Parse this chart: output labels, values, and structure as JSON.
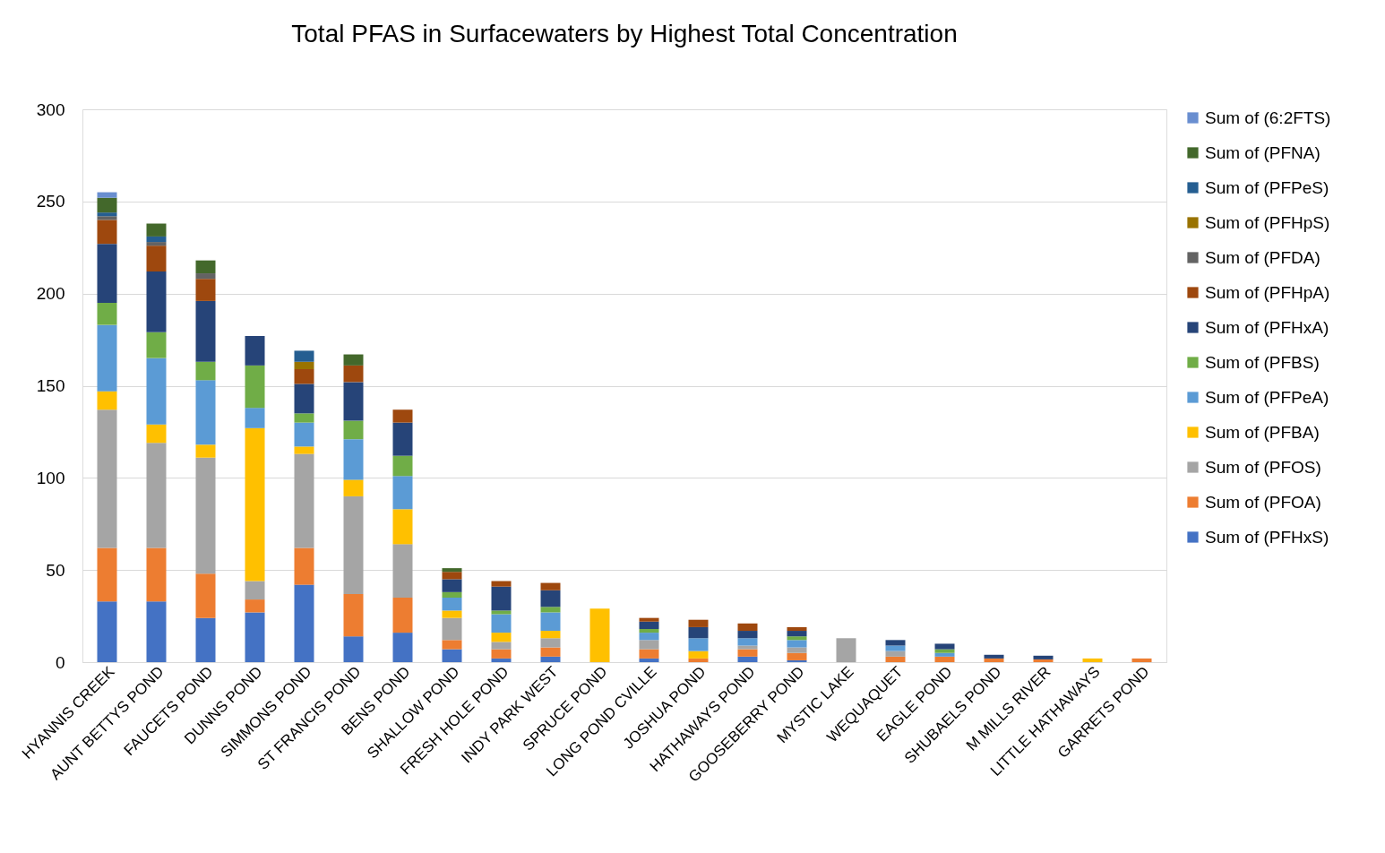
{
  "chart_data": {
    "type": "bar",
    "title": "Total PFAS in Surfacewaters by Highest Total Concentration",
    "stacked": true,
    "grid": "y",
    "legend": "right",
    "categories": [
      "HYANNIS CREEK",
      "AUNT BETTYS POND",
      "FAUCETS POND",
      "DUNNS POND",
      "SIMMONS POND",
      "ST FRANCIS POND",
      "BENS POND",
      "SHALLOW POND",
      "FRESH HOLE POND",
      "INDY PARK WEST",
      "SPRUCE POND",
      "LONG POND CVILLE",
      "JOSHUA POND",
      "HATHAWAYS POND",
      "GOOSEBERRY POND",
      "MYSTIC LAKE",
      "WEQUAQUET",
      "EAGLE POND",
      "SHUBAELS POND",
      "M MILLS RIVER",
      "LITTLE HATHAWAYS",
      "GARRETS POND"
    ],
    "ylim": [
      0,
      300
    ],
    "yticks": [
      0,
      50,
      100,
      150,
      200,
      250,
      300
    ],
    "series": [
      {
        "name": "Sum of (PFHxS)",
        "color": "#4472c4",
        "values": [
          33,
          33,
          24,
          27,
          42,
          14,
          16,
          7,
          2,
          3,
          null,
          2,
          null,
          3,
          1,
          null,
          null,
          null,
          null,
          null,
          null,
          null
        ]
      },
      {
        "name": "Sum of (PFOA)",
        "color": "#ed7d31",
        "values": [
          29,
          29,
          24,
          7,
          20,
          23,
          19,
          5,
          5,
          5,
          null,
          5,
          2,
          4,
          4,
          null,
          3,
          3,
          2,
          1.5,
          null,
          2
        ]
      },
      {
        "name": "Sum of (PFOS)",
        "color": "#a5a5a5",
        "values": [
          75,
          57,
          63,
          10,
          51,
          53,
          29,
          12,
          4,
          5,
          null,
          5,
          null,
          2,
          3,
          13,
          3,
          null,
          null,
          null,
          null,
          null
        ]
      },
      {
        "name": "Sum of (PFBA)",
        "color": "#ffc000",
        "values": [
          10,
          10,
          7,
          83,
          4,
          9,
          19,
          4,
          5,
          4,
          29,
          null,
          4,
          null,
          null,
          null,
          null,
          null,
          null,
          null,
          2,
          null
        ]
      },
      {
        "name": "Sum of (PFPeA)",
        "color": "#5b9bd5",
        "values": [
          36,
          36,
          35,
          11,
          13,
          22,
          18,
          7,
          10,
          10,
          null,
          4,
          7,
          4,
          4,
          null,
          3,
          2,
          null,
          null,
          null,
          null
        ]
      },
      {
        "name": "Sum of (PFBS)",
        "color": "#70ad47",
        "values": [
          12,
          14,
          10,
          23,
          5,
          10,
          11,
          3,
          2,
          3,
          null,
          2,
          null,
          null,
          2,
          null,
          null,
          2,
          null,
          null,
          null,
          null
        ]
      },
      {
        "name": "Sum of (PFHxA)",
        "color": "#264478",
        "values": [
          32,
          33,
          33,
          16,
          16,
          21,
          18,
          7,
          13,
          9,
          null,
          4,
          6,
          4,
          3,
          null,
          3,
          3,
          2,
          2,
          null,
          null
        ]
      },
      {
        "name": "Sum of (PFHpA)",
        "color": "#9e480e",
        "values": [
          13,
          14,
          12,
          null,
          8,
          9,
          7,
          4,
          3,
          4,
          null,
          2,
          4,
          4,
          2,
          null,
          null,
          null,
          null,
          null,
          null,
          null
        ]
      },
      {
        "name": "Sum of (PFDA)",
        "color": "#636363",
        "values": [
          2,
          2,
          3,
          null,
          null,
          null,
          null,
          null,
          null,
          null,
          null,
          null,
          null,
          null,
          null,
          null,
          null,
          null,
          null,
          null,
          null,
          null
        ]
      },
      {
        "name": "Sum of (PFHpS)",
        "color": "#997300",
        "values": [
          null,
          null,
          null,
          null,
          4,
          null,
          null,
          null,
          null,
          null,
          null,
          null,
          null,
          null,
          null,
          null,
          null,
          null,
          null,
          null,
          null,
          null
        ]
      },
      {
        "name": "Sum of (PFPeS)",
        "color": "#255e91",
        "values": [
          2,
          3,
          null,
          null,
          6,
          null,
          null,
          null,
          null,
          null,
          null,
          null,
          null,
          null,
          null,
          null,
          null,
          null,
          null,
          null,
          null,
          null
        ]
      },
      {
        "name": "Sum of (PFNA)",
        "color": "#43682b",
        "values": [
          8,
          7,
          7,
          null,
          null,
          6,
          null,
          2,
          null,
          null,
          null,
          null,
          null,
          null,
          null,
          null,
          null,
          null,
          null,
          null,
          null,
          null
        ]
      },
      {
        "name": "Sum of (6:2FTS)",
        "color": "#698ed0",
        "values": [
          3,
          null,
          null,
          null,
          null,
          null,
          null,
          null,
          null,
          null,
          null,
          null,
          null,
          null,
          null,
          null,
          null,
          null,
          null,
          null,
          null,
          null
        ]
      }
    ]
  }
}
